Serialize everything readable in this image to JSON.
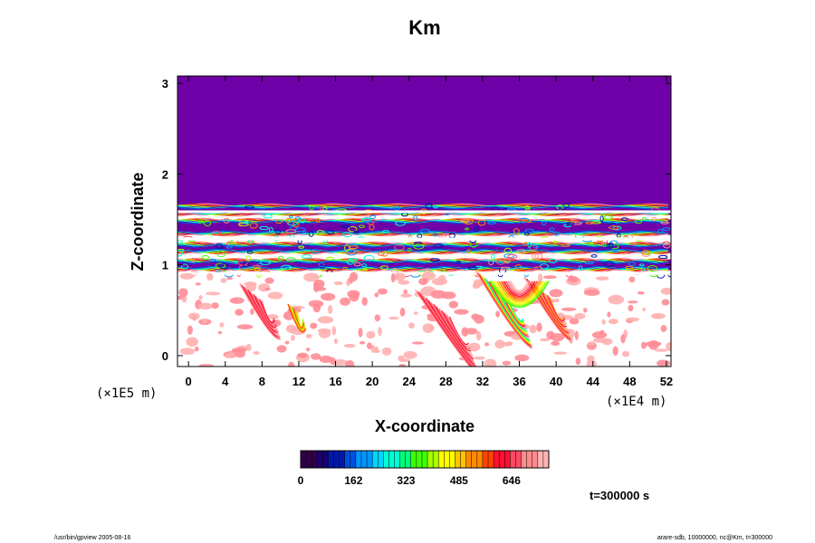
{
  "chart_data": {
    "type": "heatmap",
    "title": "Km",
    "xlabel": "X-coordinate",
    "ylabel": "Z-coordinate",
    "x_unit": "(×1E4 m)",
    "y_unit": "(×1E5 m)",
    "x_ticks": [
      "0",
      "4",
      "8",
      "12",
      "16",
      "20",
      "24",
      "28",
      "32",
      "36",
      "40",
      "44",
      "48",
      "52"
    ],
    "x_tick_values": [
      0,
      4,
      8,
      12,
      16,
      20,
      24,
      28,
      32,
      36,
      40,
      44,
      48,
      52
    ],
    "y_ticks": [
      "0",
      "1",
      "2",
      "3"
    ],
    "y_tick_values": [
      0,
      1,
      2,
      3
    ],
    "xlim": [
      -1.2,
      52.5
    ],
    "ylim": [
      -0.12,
      3.08
    ],
    "colorbar": {
      "ticks": [
        "0",
        "162",
        "323",
        "485",
        "646"
      ],
      "tick_values": [
        0,
        162,
        323,
        485,
        646
      ],
      "range": [
        0,
        760
      ],
      "colors": [
        "#30004a",
        "#1a0070",
        "#0018a8",
        "#0050e0",
        "#0096ff",
        "#00d6ff",
        "#00ffd6",
        "#00ff7a",
        "#40ff00",
        "#a8ff00",
        "#ffff00",
        "#ffc400",
        "#ff8a00",
        "#ff4400",
        "#ff1030",
        "#ff4a66",
        "#ff8c8c",
        "#ffb4b4"
      ],
      "background": "#7000a8"
    },
    "field_description_levels": {
      "upper_layer": {
        "z_range": [
          1.65,
          3.08
        ],
        "value": 0
      },
      "banded_layer": {
        "z_range": [
          0.85,
          1.65
        ]
      },
      "lower_layer": {
        "z_range": [
          -0.12,
          0.85
        ]
      }
    },
    "annotation": "t=300000 s"
  },
  "footer": {
    "left": "/usr/bin/gpview 2005-08-16",
    "right": "arare-sdb, 10000000, nc@Km, t=300000"
  }
}
